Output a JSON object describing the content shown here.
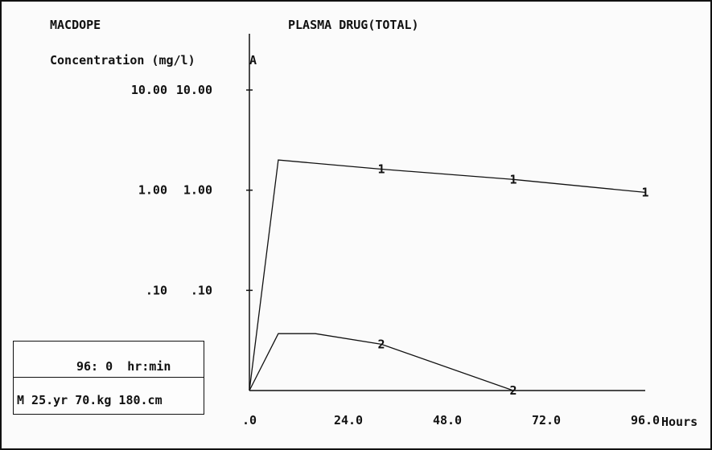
{
  "app": {
    "name": "MACDOPE"
  },
  "chart_data": {
    "type": "line",
    "title": "PLASMA DRUG(TOTAL)",
    "ylabel": "Concentration (mg/l)",
    "axis_marker": "A",
    "xlabel": "Hours",
    "yscale": "log",
    "xlim": [
      0,
      96
    ],
    "ylim": [
      0.01,
      10
    ],
    "y_ticks": [
      {
        "left": "10.00",
        "right": "10.00",
        "value": 10
      },
      {
        "left": "1.00",
        "right": "1.00",
        "value": 1
      },
      {
        "left": ".10",
        "right": ".10",
        "value": 0.1
      }
    ],
    "x_ticks": [
      {
        "label": ".0",
        "value": 0
      },
      {
        "label": "24.0",
        "value": 24
      },
      {
        "label": "48.0",
        "value": 48
      },
      {
        "label": "72.0",
        "value": 72
      },
      {
        "label": "96.0",
        "value": 96
      }
    ],
    "series": [
      {
        "marker": "1",
        "x": [
          0,
          7,
          32,
          64,
          96
        ],
        "y": [
          0.01,
          2.0,
          1.62,
          1.28,
          0.95
        ],
        "marker_points": [
          32,
          64,
          96
        ]
      },
      {
        "marker": "2",
        "x": [
          0,
          7,
          16,
          32,
          64
        ],
        "y": [
          0.01,
          0.037,
          0.037,
          0.029,
          0.01
        ],
        "marker_points": [
          32,
          64
        ]
      }
    ]
  },
  "status": {
    "elapsed_value": "96: 0",
    "elapsed_unit": "hr:min",
    "patient": "M 25.yr 70.kg 180.cm"
  },
  "colors": {
    "ink": "#111111",
    "background": "#fbfbfb"
  }
}
